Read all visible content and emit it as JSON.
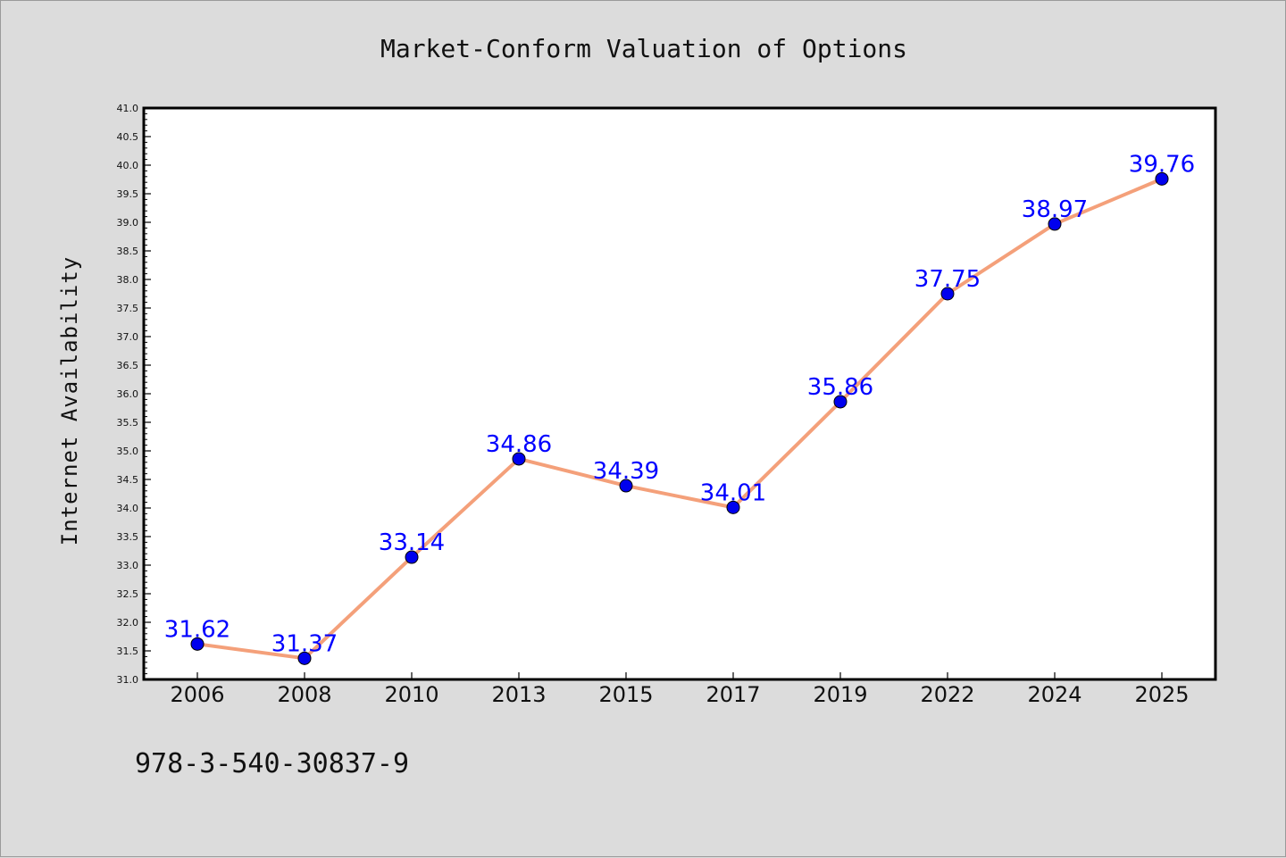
{
  "chart_data": {
    "type": "line",
    "title": "Market-Conform Valuation of Options",
    "xlabel": "",
    "ylabel": "Internet Availability",
    "categories": [
      "2006",
      "2008",
      "2010",
      "2013",
      "2015",
      "2017",
      "2019",
      "2022",
      "2024",
      "2025"
    ],
    "series": [
      {
        "values": [
          31.62,
          31.37,
          33.14,
          34.86,
          34.39,
          34.01,
          35.86,
          37.75,
          38.97,
          39.76
        ],
        "labels": [
          "31.62",
          "31.37",
          "33.14",
          "34.86",
          "34.39",
          "34.01",
          "35.86",
          "37.75",
          "38.97",
          "39.76"
        ],
        "line_color": "#f4a07a",
        "marker_color": "#0000ee"
      }
    ],
    "ylim": [
      31.0,
      41.0
    ],
    "yticks": [
      "31.0",
      "31.5",
      "32.0",
      "32.5",
      "33.0",
      "33.5",
      "34.0",
      "34.5",
      "35.0",
      "35.5",
      "36.0",
      "36.5",
      "37.0",
      "37.5",
      "38.0",
      "38.5",
      "39.0",
      "39.5",
      "40.0",
      "40.5",
      "41.0"
    ],
    "grid": false,
    "legend": "none"
  },
  "footer": {
    "isbn": "978-3-540-30837-9"
  },
  "colors": {
    "background": "#dcdcdc",
    "plot_area": "#ffffff",
    "data_label": "#0000ff"
  }
}
